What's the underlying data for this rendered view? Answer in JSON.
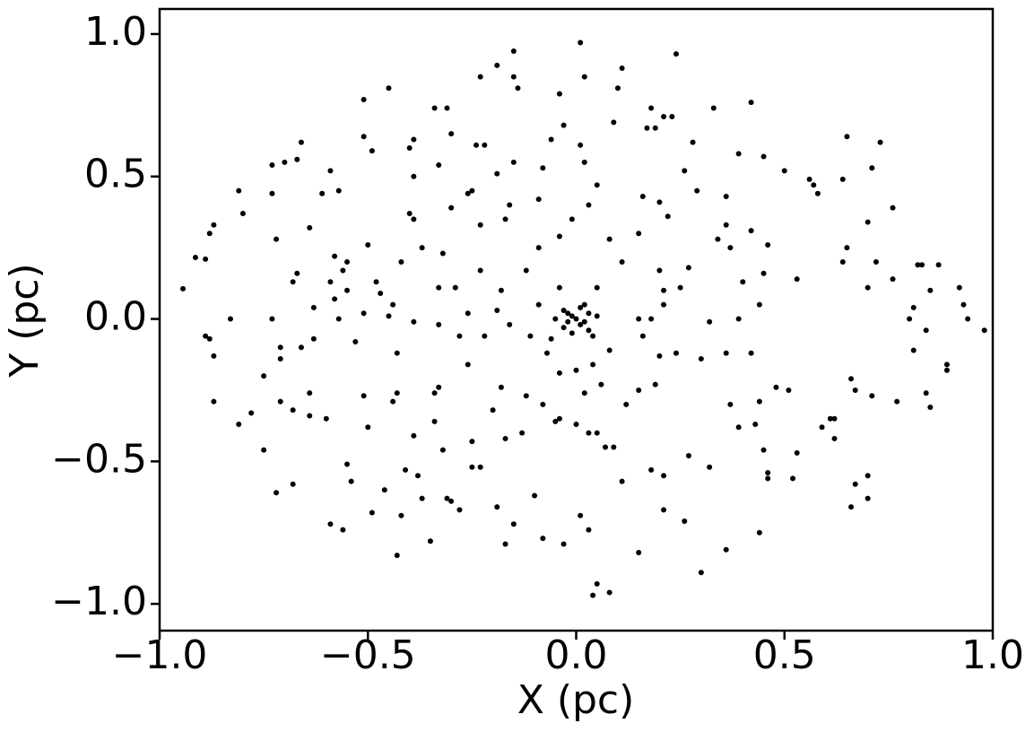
{
  "chart_data": {
    "type": "scatter",
    "x_label": "X (pc)",
    "y_label": "Y (pc)",
    "color": "#000000",
    "xlim": [
      -1.0,
      1.0
    ],
    "ylim": [
      -1.094,
      1.088
    ],
    "xticks": [
      {
        "value": -1.0,
        "label": "−1.0"
      },
      {
        "value": -0.5,
        "label": "−0.5"
      },
      {
        "value": 0.0,
        "label": "0.0"
      },
      {
        "value": 0.5,
        "label": "0.5"
      },
      {
        "value": 1.0,
        "label": "1.0"
      }
    ],
    "yticks": [
      {
        "value": -1.0,
        "label": "−1.0"
      },
      {
        "value": -0.5,
        "label": "−0.5"
      },
      {
        "value": 0.0,
        "label": "0.0"
      },
      {
        "value": 0.5,
        "label": "0.5"
      },
      {
        "value": 1.0,
        "label": "1.0"
      }
    ],
    "x": [
      -0.944,
      -0.914,
      -0.89,
      -0.88,
      -0.87,
      -0.81,
      -0.8,
      -0.73,
      -0.73,
      -0.7,
      -0.66,
      -0.67,
      -0.89,
      -0.88,
      -0.83,
      -0.87,
      -0.87,
      -0.81,
      -0.78,
      -0.75,
      -0.75,
      -0.72,
      -0.68,
      -0.71,
      -0.68,
      -0.64,
      -0.64,
      -0.68,
      -0.67,
      -0.72,
      -0.64,
      -0.61,
      -0.59,
      -0.57,
      -0.58,
      -0.56,
      -0.55,
      -0.58,
      -0.55,
      -0.6,
      -0.59,
      -0.56,
      -0.55,
      -0.54,
      -0.51,
      -0.51,
      -0.49,
      -0.45,
      -0.5,
      -0.48,
      -0.51,
      -0.5,
      -0.49,
      -0.46,
      -0.43,
      -0.42,
      -0.4,
      -0.39,
      -0.39,
      -0.4,
      -0.39,
      -0.42,
      -0.47,
      -0.44,
      -0.45,
      -0.43,
      -0.44,
      -0.43,
      -0.41,
      -0.38,
      -0.39,
      -0.37,
      -0.35,
      -0.34,
      -0.31,
      -0.33,
      -0.3,
      -0.32,
      -0.33,
      -0.33,
      -0.34,
      -0.33,
      -0.34,
      -0.32,
      -0.31,
      -0.3,
      -0.28,
      -0.26,
      -0.25,
      -0.24,
      -0.22,
      -0.23,
      -0.19,
      -0.15,
      -0.15,
      -0.14,
      -0.04,
      0.01,
      0.02,
      0.1,
      0.11,
      0.24,
      0.09,
      0.18,
      0.21,
      0.23,
      0.33,
      0.42,
      0.17,
      0.19,
      0.28,
      0.39,
      0.45,
      0.5,
      0.56,
      0.57,
      0.58,
      0.65,
      0.73,
      0.71,
      0.64,
      0.76,
      0.7,
      0.65,
      0.64,
      0.72,
      0.82,
      0.83,
      0.87,
      0.76,
      0.7,
      0.85,
      0.92,
      0.93,
      0.94,
      0.98,
      0.8,
      0.81,
      0.81,
      0.84,
      0.89,
      0.89,
      0.84,
      0.85,
      0.77,
      0.71,
      0.66,
      0.67,
      0.62,
      0.61,
      0.59,
      0.62,
      0.7,
      0.66,
      0.7,
      0.67,
      0.52,
      0.53,
      0.46,
      0.46,
      0.44,
      0.36,
      0.3,
      0.26,
      0.15,
      0.05,
      0.04,
      0.08,
      0.01,
      0.03,
      -0.03,
      -0.08,
      -0.17,
      -0.19,
      -0.15,
      -0.1,
      -0.25,
      -0.23,
      -0.25,
      -0.17,
      -0.13,
      -0.2,
      -0.18,
      -0.12,
      -0.08,
      -0.04,
      -0.05,
      0.0,
      0.03,
      0.05,
      0.07,
      0.09,
      0.11,
      0.18,
      0.21,
      0.21,
      0.27,
      0.32,
      0.39,
      0.43,
      0.45,
      0.37,
      0.44,
      0.48,
      0.51,
      0.3,
      0.36,
      0.42,
      0.32,
      0.39,
      0.44,
      0.4,
      0.45,
      0.53,
      0.46,
      0.42,
      0.37,
      0.34,
      0.36,
      0.36,
      0.29,
      0.26,
      0.22,
      0.2,
      0.16,
      0.15,
      0.2,
      0.27,
      0.25,
      0.21,
      0.21,
      0.18,
      0.15,
      0.16,
      0.2,
      0.24,
      0.19,
      0.15,
      0.12,
      0.06,
      0.04,
      0.0,
      -0.04,
      -0.07,
      -0.11,
      -0.16,
      -0.19,
      -0.18,
      -0.12,
      -0.09,
      -0.04,
      -0.01,
      0.03,
      0.08,
      0.11,
      0.05,
      0.02,
      -0.01,
      -0.02,
      0.01,
      0.03,
      -0.03,
      -0.01,
      0.04,
      -0.06,
      -0.09,
      -0.04,
      0.08,
      0.02,
      -0.22,
      -0.28,
      -0.26,
      -0.26,
      -0.29,
      -0.23,
      -0.23,
      -0.17,
      -0.16,
      -0.09,
      -0.08,
      -0.06,
      -0.03,
      0.01,
      0.02,
      0.05,
      -0.15,
      -0.19,
      -0.3,
      -0.37,
      -0.39,
      -0.53,
      -0.51,
      -0.57,
      -0.63,
      -0.66,
      -0.71,
      -0.71,
      -0.73,
      -0.59,
      -0.63,
      0.0,
      0.02,
      -0.02,
      0.01,
      -0.03,
      0.05,
      -0.05,
      0.03
    ],
    "values": [
      0.106,
      0.216,
      0.21,
      0.3,
      0.33,
      0.45,
      0.37,
      0.54,
      0.44,
      0.55,
      0.62,
      0.56,
      -0.06,
      -0.07,
      0,
      -0.13,
      -0.29,
      -0.37,
      -0.33,
      -0.46,
      -0.2,
      -0.61,
      -0.58,
      -0.29,
      -0.32,
      -0.34,
      -0.26,
      0.13,
      0.16,
      0.28,
      0.32,
      0.44,
      0.52,
      0.45,
      0.22,
      0.17,
      0.2,
      0.07,
      0.1,
      -0.35,
      -0.72,
      -0.74,
      -0.51,
      -0.57,
      0.64,
      0.77,
      0.59,
      0.81,
      0.26,
      0.13,
      -0.27,
      -0.38,
      -0.68,
      -0.6,
      -0.83,
      -0.69,
      0.6,
      0.63,
      0.5,
      0.37,
      0.35,
      0.2,
      0.09,
      0.05,
      0.01,
      -0.12,
      -0.29,
      -0.26,
      -0.53,
      -0.55,
      -0.41,
      -0.63,
      -0.78,
      0.74,
      0.74,
      0.54,
      0.65,
      0.23,
      0.11,
      -0.02,
      -0.26,
      -0.24,
      -0.36,
      -0.46,
      -0.63,
      -0.64,
      -0.67,
      0.44,
      0.45,
      0.61,
      0.61,
      0.85,
      0.89,
      0.94,
      0.85,
      0.81,
      0.79,
      0.97,
      0.85,
      0.81,
      0.88,
      0.93,
      0.69,
      0.74,
      0.71,
      0.71,
      0.74,
      0.76,
      0.67,
      0.67,
      0.62,
      0.58,
      0.57,
      0.52,
      0.49,
      0.47,
      0.44,
      0.64,
      0.62,
      0.53,
      0.49,
      0.39,
      0.34,
      0.25,
      0.2,
      0.2,
      0.19,
      0.19,
      0.19,
      0.14,
      0.11,
      0.1,
      0.11,
      0.05,
      0,
      -0.04,
      0,
      0.04,
      -0.11,
      -0.04,
      -0.16,
      -0.18,
      -0.26,
      -0.31,
      -0.29,
      -0.27,
      -0.21,
      -0.25,
      -0.35,
      -0.35,
      -0.38,
      -0.42,
      -0.55,
      -0.66,
      -0.63,
      -0.58,
      -0.56,
      -0.47,
      -0.54,
      -0.56,
      -0.75,
      -0.81,
      -0.89,
      -0.71,
      -0.82,
      -0.93,
      -0.97,
      -0.96,
      -0.69,
      -0.74,
      -0.79,
      -0.77,
      -0.79,
      -0.66,
      -0.72,
      -0.62,
      -0.52,
      -0.52,
      -0.43,
      -0.42,
      -0.4,
      -0.32,
      -0.24,
      -0.27,
      -0.3,
      -0.35,
      -0.36,
      -0.37,
      -0.4,
      -0.4,
      -0.45,
      -0.45,
      -0.57,
      -0.53,
      -0.55,
      -0.67,
      -0.48,
      -0.52,
      -0.38,
      -0.37,
      -0.46,
      -0.3,
      -0.29,
      -0.24,
      -0.25,
      -0.14,
      -0.12,
      -0.12,
      -0.01,
      0.0,
      0.05,
      0.13,
      0.16,
      0.14,
      0.26,
      0.31,
      0.25,
      0.28,
      0.33,
      0.43,
      0.45,
      0.52,
      0.36,
      0.41,
      0.43,
      0.3,
      0.17,
      0.18,
      0.11,
      0.1,
      0.05,
      0.0,
      0.0,
      -0.06,
      -0.13,
      -0.12,
      -0.23,
      -0.25,
      -0.3,
      -0.23,
      -0.16,
      -0.18,
      -0.19,
      -0.12,
      -0.06,
      -0.02,
      0.03,
      0.1,
      0.17,
      0.25,
      0.29,
      0.35,
      0.4,
      0.28,
      0.2,
      0.11,
      0.05,
      0.01,
      -0.01,
      -0.02,
      0.02,
      0.03,
      -0.05,
      -0.06,
      -0.07,
      0.05,
      0.11,
      -0.11,
      -0.26,
      -0.06,
      -0.06,
      -0.16,
      0.02,
      0.11,
      0.17,
      0.33,
      0.35,
      0.4,
      0.42,
      0.53,
      0.63,
      0.68,
      0.61,
      0.55,
      0.47,
      0.55,
      0.51,
      0.39,
      0.25,
      -0.01,
      -0.08,
      0.02,
      0.0,
      -0.07,
      -0.1,
      -0.1,
      -0.14,
      0.0,
      0.13,
      0.04,
      0.0,
      -0.01,
      0.02,
      0.04,
      -0.03,
      0.01,
      0.0,
      -0.04
    ]
  }
}
